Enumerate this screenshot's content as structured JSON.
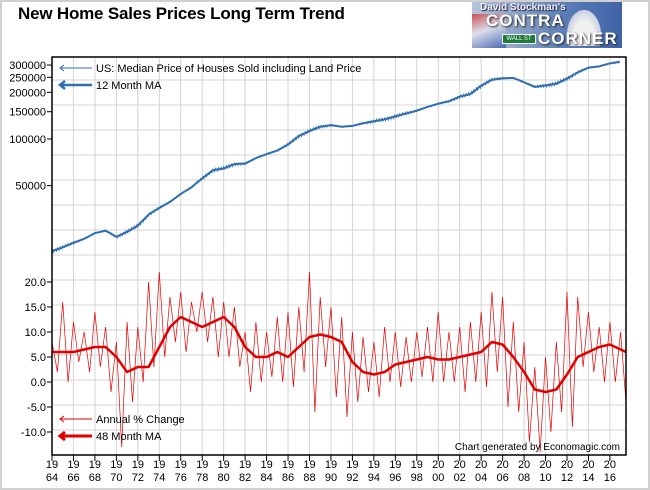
{
  "chart_data": [
    {
      "type": "line",
      "title": "New Home Sales Prices Long Term Trend",
      "yscale": "log",
      "ylim": [
        17000,
        320000
      ],
      "xlim": [
        1964,
        2017.5
      ],
      "grid": true,
      "legend_placement": "top-left",
      "y_ticks": [
        "300000",
        "250000",
        "200000",
        "150000",
        "100000",
        "50000"
      ],
      "y_tick_values": [
        300000,
        250000,
        200000,
        150000,
        100000,
        50000
      ],
      "series": [
        {
          "name": "US: Median Price of Houses Sold including Land Price",
          "color": "#2f6eb0",
          "x": [
            1964,
            1965,
            1966,
            1967,
            1968,
            1969,
            1970,
            1971,
            1972,
            1973,
            1974,
            1975,
            1976,
            1977,
            1978,
            1979,
            1980,
            1981,
            1982,
            1983,
            1984,
            1985,
            1986,
            1987,
            1988,
            1989,
            1990,
            1991,
            1992,
            1993,
            1994,
            1995,
            1996,
            1997,
            1998,
            1999,
            2000,
            2001,
            2002,
            2003,
            2004,
            2005,
            2006,
            2007,
            2008,
            2009,
            2010,
            2011,
            2012,
            2013,
            2014,
            2015,
            2016,
            2017
          ],
          "y": [
            18900,
            20000,
            21400,
            22700,
            24700,
            25600,
            23400,
            25200,
            27600,
            32500,
            35900,
            39300,
            44200,
            48800,
            55700,
            62900,
            64600,
            68900,
            69300,
            75300,
            79900,
            84300,
            92000,
            104500,
            112500,
            120000,
            122900,
            120000,
            121500,
            126500,
            130000,
            133900,
            140000,
            146000,
            152500,
            161000,
            169000,
            175200,
            187600,
            195000,
            221000,
            240900,
            246500,
            247900,
            232100,
            216700,
            221800,
            227200,
            245200,
            268900,
            288500,
            294200,
            307800,
            315000
          ]
        },
        {
          "name": "12 Month MA",
          "color": "#2f6eb0"
        }
      ]
    },
    {
      "type": "line",
      "ylim": [
        -15,
        23
      ],
      "xlim": [
        1964,
        2017.5
      ],
      "grid": true,
      "legend_placement": "bottom-left",
      "y_ticks": [
        "20.0",
        "15.0",
        "10.0",
        "5.0",
        "0.0",
        "-5.0",
        "-10.0"
      ],
      "y_tick_values": [
        20,
        15,
        10,
        5,
        0,
        -5,
        -10
      ],
      "x_ticks": [
        [
          "19",
          "64"
        ],
        [
          "19",
          "66"
        ],
        [
          "19",
          "68"
        ],
        [
          "19",
          "70"
        ],
        [
          "19",
          "72"
        ],
        [
          "19",
          "74"
        ],
        [
          "19",
          "76"
        ],
        [
          "19",
          "78"
        ],
        [
          "19",
          "80"
        ],
        [
          "19",
          "82"
        ],
        [
          "19",
          "84"
        ],
        [
          "19",
          "86"
        ],
        [
          "19",
          "88"
        ],
        [
          "19",
          "90"
        ],
        [
          "19",
          "92"
        ],
        [
          "19",
          "94"
        ],
        [
          "19",
          "96"
        ],
        [
          "19",
          "98"
        ],
        [
          "20",
          "00"
        ],
        [
          "20",
          "02"
        ],
        [
          "20",
          "04"
        ],
        [
          "20",
          "06"
        ],
        [
          "20",
          "08"
        ],
        [
          "20",
          "10"
        ],
        [
          "20",
          "12"
        ],
        [
          "20",
          "14"
        ],
        [
          "20",
          "16"
        ]
      ],
      "series": [
        {
          "name": "Annual % Change",
          "color": "#e00000",
          "x_start": 1964,
          "x_step": 0.5,
          "y": [
            8,
            2,
            16,
            0,
            12,
            4,
            10,
            2,
            14,
            3,
            11,
            -2,
            8,
            -13,
            12,
            -4,
            11,
            0,
            20,
            3,
            22,
            5,
            17,
            8,
            18,
            6,
            16,
            10,
            18,
            8,
            17,
            5,
            16,
            5,
            15,
            3,
            10,
            -2,
            12,
            0,
            10,
            1,
            13,
            0,
            14,
            -1,
            15,
            2,
            22,
            -6,
            17,
            3,
            15,
            -3,
            13,
            -7,
            10,
            -4,
            9,
            -2,
            8,
            -3,
            11,
            0,
            10,
            -1,
            9,
            0,
            10,
            1,
            11,
            0,
            14,
            0,
            10,
            0,
            11,
            -2,
            12,
            0,
            14,
            -1,
            18,
            2,
            17,
            -5,
            12,
            -6,
            8,
            -12,
            3,
            -14,
            5,
            -10,
            8,
            -6,
            18,
            -9,
            17,
            3,
            14,
            2,
            11,
            0,
            12,
            0,
            10,
            -4
          ]
        },
        {
          "name": "48 Month MA",
          "color": "#e00000",
          "x": [
            1964,
            1966,
            1968,
            1969,
            1970,
            1971,
            1972,
            1973,
            1974,
            1975,
            1976,
            1977,
            1978,
            1979,
            1980,
            1981,
            1982,
            1983,
            1984,
            1985,
            1986,
            1987,
            1988,
            1989,
            1990,
            1991,
            1992,
            1993,
            1994,
            1995,
            1996,
            1997,
            1998,
            1999,
            2000,
            2001,
            2002,
            2003,
            2004,
            2005,
            2006,
            2007,
            2008,
            2009,
            2010,
            2011,
            2012,
            2013,
            2014,
            2015,
            2016,
            2017.5
          ],
          "y": [
            6,
            6,
            7,
            7,
            5,
            2,
            3,
            3,
            7,
            11,
            13,
            12,
            11,
            12,
            13,
            11,
            7,
            5,
            5,
            6,
            5,
            7,
            9,
            9.5,
            9,
            8,
            4,
            2,
            1.5,
            2,
            3.5,
            4,
            4.5,
            5,
            4.5,
            4.5,
            5,
            5.5,
            6,
            8,
            7.5,
            5,
            2,
            -1.5,
            -2,
            -1.5,
            1.5,
            5,
            6,
            7,
            7.5,
            6
          ]
        }
      ],
      "annotation": "Chart generated by Economagic.com"
    }
  ],
  "logo": {
    "text": "David Stockman's CONTRA CORNER",
    "sign": "WALL ST"
  }
}
